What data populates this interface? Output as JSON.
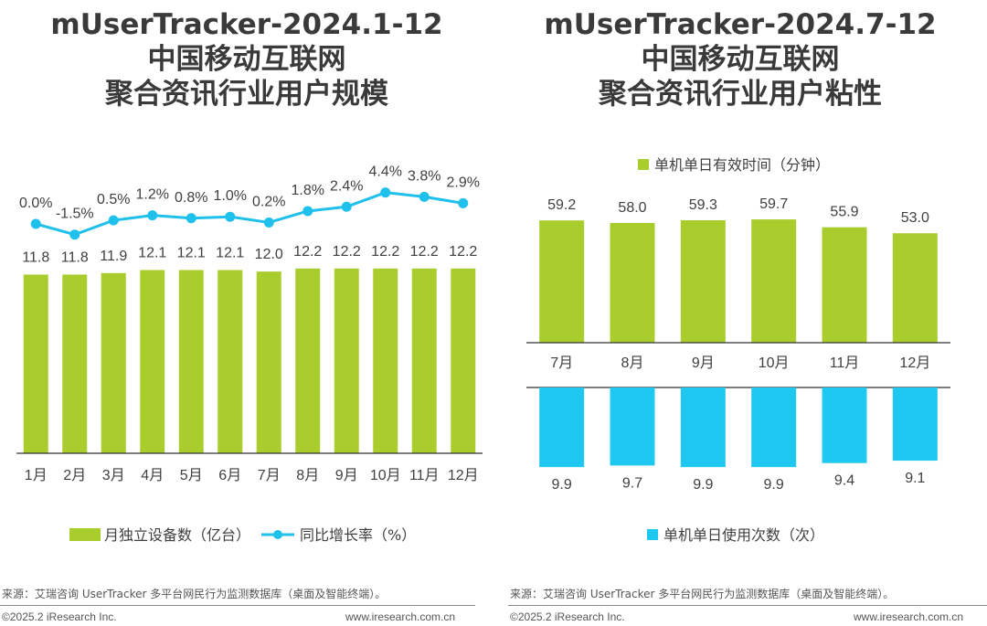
{
  "colors": {
    "bar_green": "#a9cd2c",
    "line_blue": "#1fc0ec",
    "bar_blue": "#1fc8f0",
    "axis": "#333333",
    "text": "#404040"
  },
  "left": {
    "title_lines": [
      "mUserTracker-2024.1-12",
      "中国移动互联网",
      "聚合资讯行业用户规模"
    ],
    "legend": {
      "bar": "月独立设备数（亿台）",
      "line": "同比增长率（%）"
    },
    "source": "来源：艾瑞咨询 UserTracker 多平台网民行为监测数据库（桌面及智能终端）。",
    "copyright": "©2025.2 iResearch Inc.",
    "website": "www.iresearch.com.cn"
  },
  "right": {
    "title_lines": [
      "mUserTracker-2024.7-12",
      "中国移动互联网",
      "聚合资讯行业用户粘性"
    ],
    "legend_top": "单机单日有效时间（分钟）",
    "legend_bottom": "单机单日使用次数（次）",
    "source": "来源：艾瑞咨询 UserTracker 多平台网民行为监测数据库（桌面及智能终端）。",
    "copyright": "©2025.2 iResearch Inc.",
    "website": "www.iresearch.com.cn"
  },
  "chart_data": [
    {
      "type": "bar",
      "categories": [
        "1月",
        "2月",
        "3月",
        "4月",
        "5月",
        "6月",
        "7月",
        "8月",
        "9月",
        "10月",
        "11月",
        "12月"
      ],
      "series": [
        {
          "name": "月独立设备数（亿台）",
          "type": "bar",
          "values": [
            11.8,
            11.8,
            11.9,
            12.1,
            12.1,
            12.1,
            12.0,
            12.2,
            12.2,
            12.2,
            12.2,
            12.2
          ]
        },
        {
          "name": "同比增长率（%）",
          "type": "line",
          "values": [
            0.0,
            -1.5,
            0.5,
            1.2,
            0.8,
            1.0,
            0.2,
            1.8,
            2.4,
            4.4,
            3.8,
            2.9
          ]
        }
      ],
      "value_labels": [
        "11.8",
        "11.8",
        "11.9",
        "12.1",
        "12.1",
        "12.1",
        "12.0",
        "12.2",
        "12.2",
        "12.2",
        "12.2",
        "12.2"
      ],
      "line_labels": [
        "0.0%",
        "-1.5%",
        "0.5%",
        "1.2%",
        "0.8%",
        "1.0%",
        "0.2%",
        "1.8%",
        "2.4%",
        "4.4%",
        "3.8%",
        "2.9%"
      ],
      "legend_position": "bottom",
      "grid": false
    },
    {
      "type": "bar",
      "categories": [
        "7月",
        "8月",
        "9月",
        "10月",
        "11月",
        "12月"
      ],
      "series": [
        {
          "name": "单机单日有效时间（分钟）",
          "values": [
            59.2,
            58.0,
            59.3,
            59.7,
            55.9,
            53.0
          ]
        },
        {
          "name": "单机单日使用次数（次）",
          "values": [
            9.9,
            9.7,
            9.9,
            9.9,
            9.4,
            9.1
          ]
        }
      ],
      "value_labels_top": [
        "59.2",
        "58.0",
        "59.3",
        "59.7",
        "55.9",
        "53.0"
      ],
      "value_labels_bottom": [
        "9.9",
        "9.7",
        "9.9",
        "9.9",
        "9.4",
        "9.1"
      ],
      "legend_position": "top/bottom",
      "grid": false
    }
  ]
}
